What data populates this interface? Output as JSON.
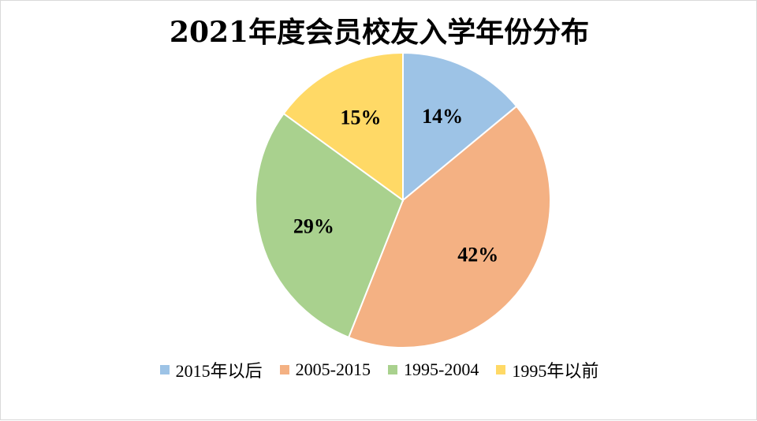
{
  "chart_data": {
    "type": "pie",
    "title": "2021年度会员校友入学年份分布",
    "categories": [
      "2015年以后",
      "2005-2015",
      "1995-2004",
      "1995年以前"
    ],
    "values": [
      14,
      42,
      29,
      15
    ],
    "labels": [
      "14%",
      "42%",
      "29%",
      "15%"
    ],
    "colors": [
      "#9dc3e6",
      "#f4b183",
      "#a9d18e",
      "#ffd966"
    ],
    "legend_position": "bottom"
  }
}
